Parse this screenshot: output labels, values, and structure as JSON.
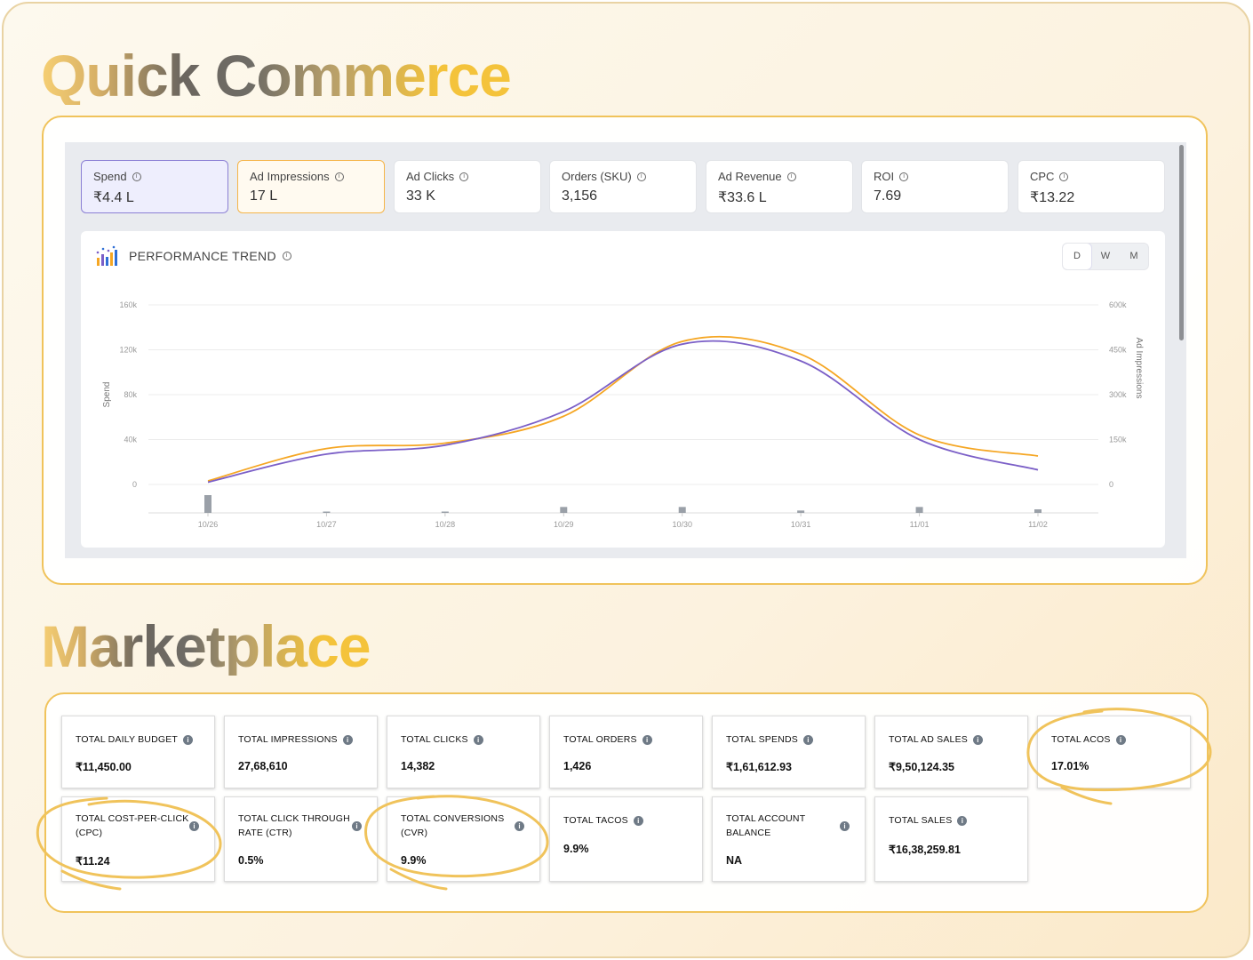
{
  "sections": {
    "quick_commerce_title": "Quick Commerce",
    "marketplace_title": "Marketplace"
  },
  "kpis": [
    {
      "label": "Spend",
      "value": "₹4.4 L"
    },
    {
      "label": "Ad Impressions",
      "value": "17 L"
    },
    {
      "label": "Ad Clicks",
      "value": "33 K"
    },
    {
      "label": "Orders (SKU)",
      "value": "3,156"
    },
    {
      "label": "Ad Revenue",
      "value": "₹33.6 L"
    },
    {
      "label": "ROI",
      "value": "7.69"
    },
    {
      "label": "CPC",
      "value": "₹13.22"
    }
  ],
  "trend": {
    "title": "PERFORMANCE TREND",
    "granularity": [
      "D",
      "W",
      "M"
    ],
    "active_granularity": "D"
  },
  "chart_data": {
    "type": "line",
    "x": [
      "10/26",
      "10/27",
      "10/28",
      "10/29",
      "10/30",
      "10/31",
      "11/01",
      "11/02"
    ],
    "ylabel": "Spend",
    "y2label": "Ad Impressions",
    "ylim": [
      0,
      160000
    ],
    "y2lim": [
      0,
      600000
    ],
    "y_ticks": [
      "160k",
      "120k",
      "80k",
      "40k",
      "0"
    ],
    "y2_ticks": [
      "600k",
      "450k",
      "300k",
      "150k",
      "0"
    ],
    "series": [
      {
        "name": "Spend",
        "axis": "left",
        "color": "#7b5fc7",
        "values": [
          2000,
          27000,
          35000,
          65000,
          125000,
          110000,
          40000,
          13000
        ]
      },
      {
        "name": "Ad Impressions",
        "axis": "right",
        "color": "#f5a623",
        "values": [
          12000,
          120000,
          138000,
          228000,
          478000,
          435000,
          165000,
          95000
        ]
      }
    ],
    "bars": [
      15,
      1,
      1,
      5,
      5,
      2,
      5,
      3
    ],
    "grid": true
  },
  "marketplace": {
    "cards": [
      {
        "label": "TOTAL DAILY BUDGET",
        "value": "₹11,450.00"
      },
      {
        "label": "TOTAL IMPRESSIONS",
        "value": "27,68,610"
      },
      {
        "label": "TOTAL CLICKS",
        "value": "14,382"
      },
      {
        "label": "TOTAL ORDERS",
        "value": "1,426"
      },
      {
        "label": "TOTAL SPENDS",
        "value": "₹1,61,612.93"
      },
      {
        "label": "TOTAL AD SALES",
        "value": "₹9,50,124.35"
      },
      {
        "label": "TOTAL ACOS",
        "value": "17.01%"
      },
      {
        "label_line1": "TOTAL COST-PER-CLICK",
        "label_line2": "(CPC)",
        "value": "₹11.24"
      },
      {
        "label_line1": "TOTAL CLICK THROUGH",
        "label_line2": "RATE (CTR)",
        "value": "0.5%"
      },
      {
        "label_line1": "TOTAL CONVERSIONS",
        "label_line2": "(CVR)",
        "value": "9.9%"
      },
      {
        "label": "TOTAL TACOS",
        "value": "9.9%"
      },
      {
        "label_line1": "TOTAL ACCOUNT",
        "label_line2": "BALANCE",
        "value": "NA"
      },
      {
        "label": "TOTAL SALES",
        "value": "₹16,38,259.81"
      }
    ]
  },
  "info_glyph": "i"
}
